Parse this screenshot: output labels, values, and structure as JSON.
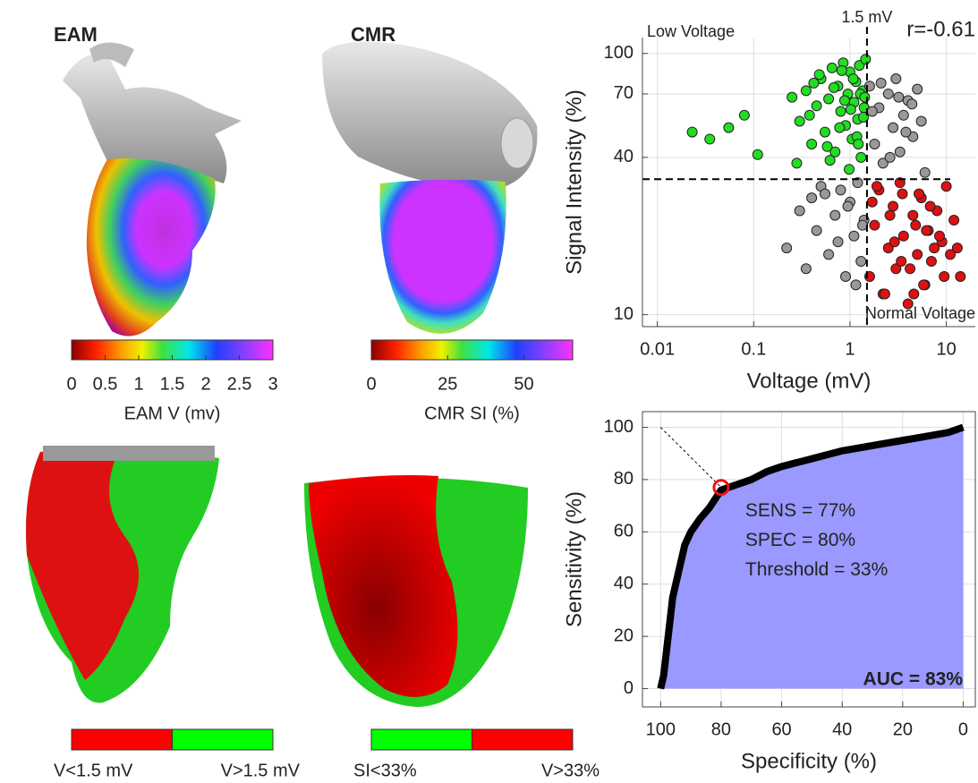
{
  "panels": {
    "eam": {
      "title": "EAM",
      "colorbar": {
        "range": [
          0,
          3
        ],
        "ticks": [
          0,
          0.5,
          1,
          1.5,
          2,
          2.5,
          3
        ],
        "label": "EAM V (mv)"
      },
      "binary": {
        "left": "V<1.5 mV",
        "right": "V>1.5 mV",
        "colors": [
          "#ff0000",
          "#00ff00"
        ]
      }
    },
    "cmr": {
      "title": "CMR",
      "colorbar": {
        "range": [
          0,
          66
        ],
        "ticks": [
          0,
          25,
          50
        ],
        "label": "CMR SI (%)"
      },
      "binary": {
        "left": "SI<33%",
        "right": "V>33%",
        "colors": [
          "#00ff00",
          "#ff0000"
        ]
      }
    }
  },
  "chart_data": [
    {
      "type": "scatter",
      "x_label": "Voltage (mV)",
      "y_label": "Signal Intensity (%)",
      "log_x": true,
      "log_y": true,
      "grid": true,
      "xlim": [
        0.007,
        20
      ],
      "ylim": [
        9,
        115
      ],
      "xticks": [
        0.01,
        0.1,
        1,
        10
      ],
      "yticks": [
        10,
        40,
        70,
        100
      ],
      "vline": {
        "value": 1.5,
        "label": "1.5 mV"
      },
      "hline": 33,
      "annotations": {
        "top_left": "Low Voltage",
        "top_right": "r=-0.61",
        "bottom_right": "Normal Voltage"
      },
      "series": [
        {
          "color": "#22dd22",
          "x": [
            0.023,
            0.035,
            0.055,
            0.08,
            0.11,
            0.25,
            0.3,
            0.35,
            0.4,
            0.45,
            0.5,
            0.55,
            0.6,
            0.65,
            0.7,
            0.75,
            0.8,
            0.85,
            0.9,
            0.95,
            1.0,
            1.05,
            1.1,
            1.15,
            1.2,
            1.25,
            1.3,
            1.35,
            1.4,
            1.45,
            0.28,
            0.38,
            0.48,
            0.58,
            0.68,
            0.78,
            0.88,
            0.98,
            1.08,
            1.18,
            1.28,
            1.38,
            0.42,
            0.62,
            0.82,
            1.02,
            1.22,
            1.42
          ],
          "values": [
            50,
            47,
            52,
            58,
            41,
            68,
            55,
            72,
            45,
            63,
            80,
            50,
            67,
            88,
            42,
            75,
            60,
            92,
            53,
            70,
            85,
            47,
            65,
            78,
            56,
            90,
            40,
            72,
            62,
            95,
            38,
            58,
            83,
            44,
            74,
            52,
            66,
            36,
            80,
            48,
            70,
            57,
            77,
            39,
            86,
            61,
            45,
            68
          ]
        },
        {
          "color": "#999999",
          "x": [
            1.6,
            1.8,
            2,
            2.2,
            2.5,
            2.8,
            3,
            3.3,
            3.6,
            4,
            4.5,
            5,
            5.5,
            6,
            1.7,
            2.1,
            2.6,
            3.2,
            3.8,
            4.4,
            0.22,
            0.3,
            0.35,
            0.4,
            0.45,
            0.5,
            0.6,
            0.7,
            0.8,
            0.9,
            1.0,
            1.1,
            1.2,
            1.3,
            1.4,
            0.55,
            0.75,
            0.95,
            1.15,
            1.35
          ],
          "values": [
            75,
            45,
            62,
            38,
            70,
            52,
            80,
            42,
            58,
            66,
            48,
            73,
            55,
            35,
            60,
            77,
            40,
            68,
            50,
            64,
            18,
            25,
            15,
            28,
            21,
            31,
            17,
            24,
            30,
            14,
            27,
            20,
            32,
            16,
            23,
            29,
            19,
            26,
            13,
            22
          ]
        },
        {
          "color": "#dd1111",
          "x": [
            1.6,
            1.8,
            2,
            2.2,
            2.5,
            2.8,
            3,
            3.3,
            3.6,
            4,
            4.5,
            5,
            5.5,
            6,
            6.5,
            7,
            8,
            9,
            10,
            12,
            14,
            1.7,
            2.3,
            2.9,
            3.5,
            4.2,
            4.8,
            5.8,
            6.8,
            7.5,
            8.5,
            11,
            1.9,
            2.6,
            3.4,
            4.6,
            5.2,
            6.2,
            9.5,
            13
          ],
          "values": [
            14,
            22,
            30,
            12,
            18,
            26,
            15,
            32,
            20,
            11,
            24,
            17,
            28,
            13,
            21,
            16,
            25,
            19,
            31,
            23,
            14,
            27,
            12,
            19,
            29,
            15,
            22,
            13,
            26,
            18,
            20,
            17,
            31,
            24,
            16,
            12,
            29,
            21,
            14,
            18
          ]
        }
      ]
    },
    {
      "type": "line",
      "x_label": "Specificity (%)",
      "y_label": "Sensitivity (%)",
      "grid": true,
      "xlim": [
        106,
        -4
      ],
      "ylim": [
        -7,
        106
      ],
      "xticks": [
        100,
        80,
        60,
        40,
        20,
        0
      ],
      "yticks": [
        0,
        20,
        40,
        60,
        80,
        100
      ],
      "color": "#000000",
      "fill": "#9999ff",
      "x": [
        100,
        99,
        98,
        97,
        96,
        94,
        92,
        90,
        87,
        84,
        80,
        75,
        70,
        65,
        60,
        50,
        40,
        30,
        20,
        10,
        5,
        0
      ],
      "values": [
        0,
        5,
        15,
        25,
        35,
        45,
        55,
        60,
        65,
        69,
        76,
        78,
        80,
        83,
        85,
        88,
        91,
        93,
        95,
        97,
        98,
        100
      ],
      "point": {
        "x": 80,
        "y": 77
      },
      "annotations": [
        "SENS = 77%",
        "SPEC = 80%",
        "Threshold = 33%"
      ],
      "auc_label": "AUC = 83%"
    }
  ]
}
